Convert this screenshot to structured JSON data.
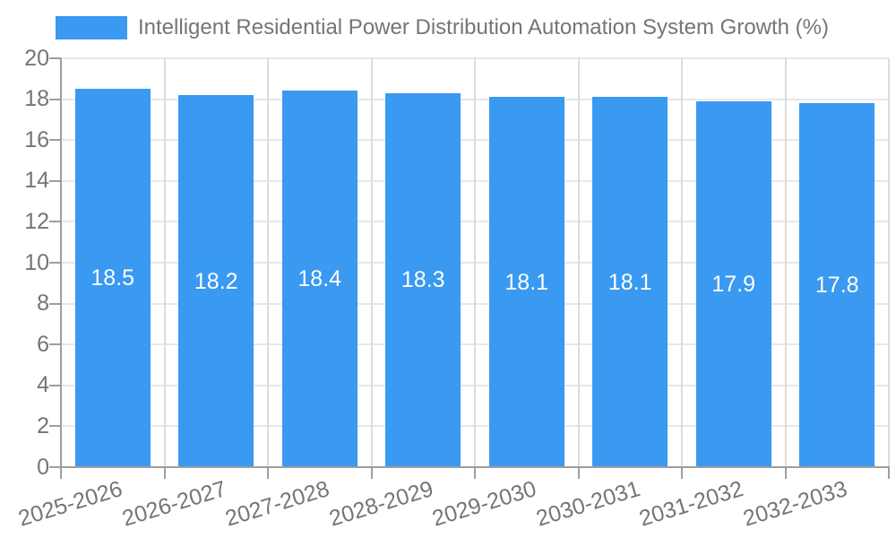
{
  "legend": {
    "label": "Intelligent Residential Power Distribution Automation System Growth (%)"
  },
  "chart_data": {
    "type": "bar",
    "title": "Intelligent Residential Power Distribution Automation System Growth (%)",
    "categories": [
      "2025-2026",
      "2026-2027",
      "2027-2028",
      "2028-2029",
      "2029-2030",
      "2030-2031",
      "2031-2032",
      "2032-2033"
    ],
    "values": [
      18.5,
      18.2,
      18.4,
      18.3,
      18.1,
      18.1,
      17.9,
      17.8
    ],
    "xlabel": "",
    "ylabel": "",
    "ylim": [
      0,
      20
    ],
    "yticks": [
      0,
      2,
      4,
      6,
      8,
      10,
      12,
      14,
      16,
      18,
      20
    ],
    "grid": true,
    "legend_position": "top-left",
    "bar_labels_inside": true,
    "colors": {
      "bar": "#3a99f0",
      "bar_label": "#ffffff",
      "text": "#757575",
      "axis": "#9e9e9e",
      "grid_h": "#e7e7e7",
      "grid_v": "#dcdcdc",
      "background": "#ffffff"
    }
  }
}
